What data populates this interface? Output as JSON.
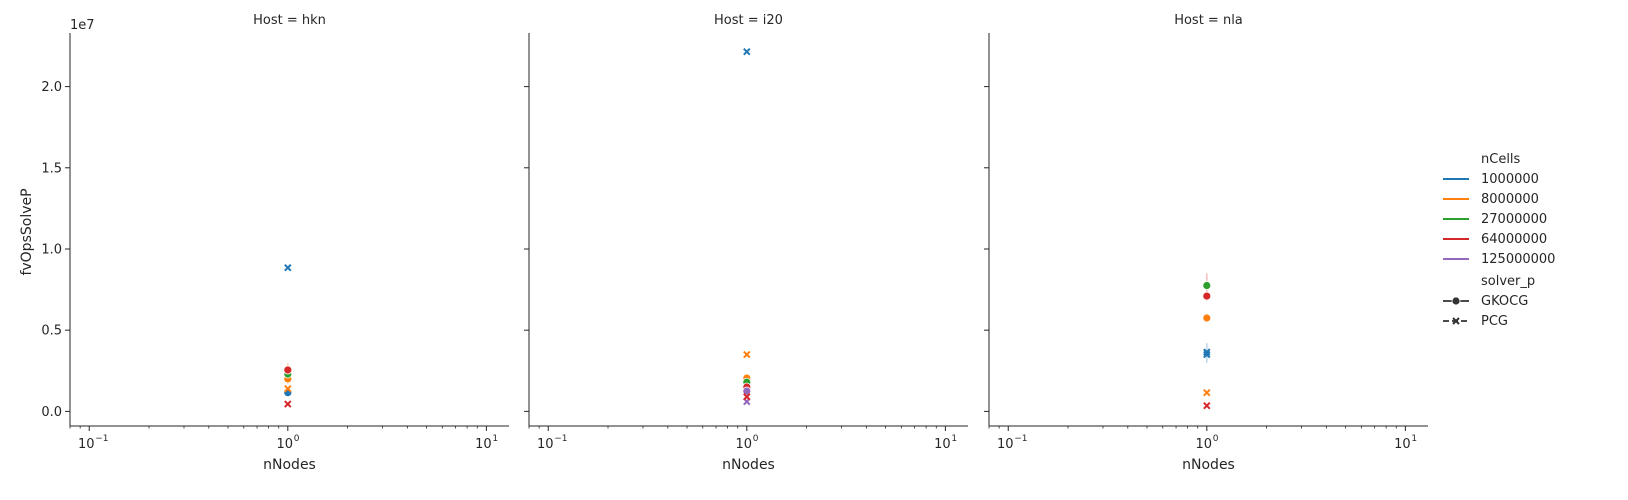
{
  "chart_data": {
    "type": "scatter",
    "layout": "facet-grid",
    "facet_titles": [
      "Host = hkn",
      "Host = i20",
      "Host = nla"
    ],
    "xlabel": "nNodes",
    "ylabel": "fvOpsSolveP",
    "y_offset_label": "1e7",
    "x_scale": "log",
    "xlim": [
      0.08,
      13
    ],
    "x_ticks": [
      0.1,
      1,
      10
    ],
    "x_tick_labels": [
      "10",
      "10",
      "10"
    ],
    "x_tick_exponents": [
      "−1",
      "0",
      "1"
    ],
    "ylim": [
      -0.09,
      2.33
    ],
    "y_ticks": [
      0.0,
      0.5,
      1.0,
      1.5,
      2.0
    ],
    "y_tick_labels": [
      "0.0",
      "0.5",
      "1.0",
      "1.5",
      "2.0"
    ],
    "grid": false,
    "legend_position": "right",
    "legend": {
      "hue_title": "nCells",
      "hue_entries": [
        {
          "label": "1000000",
          "color": "#1f77b4"
        },
        {
          "label": "8000000",
          "color": "#ff7f0e"
        },
        {
          "label": "27000000",
          "color": "#2ca02c"
        },
        {
          "label": "64000000",
          "color": "#d62728"
        },
        {
          "label": "125000000",
          "color": "#9467bd"
        }
      ],
      "style_title": "solver_p",
      "style_entries": [
        {
          "label": "GKOCG",
          "marker": "circle",
          "dash": "solid"
        },
        {
          "label": "PCG",
          "marker": "x",
          "dash": "dashed"
        }
      ]
    },
    "panels": [
      {
        "host": "hkn",
        "points": [
          {
            "x": 1,
            "y": 0.885,
            "nCells": "1000000",
            "solver_p": "PCG"
          },
          {
            "x": 1,
            "y": 0.115,
            "nCells": "1000000",
            "solver_p": "GKOCG"
          },
          {
            "x": 1,
            "y": 0.2,
            "nCells": "8000000",
            "solver_p": "GKOCG"
          },
          {
            "x": 1,
            "y": 0.14,
            "nCells": "8000000",
            "solver_p": "PCG"
          },
          {
            "x": 1,
            "y": 0.23,
            "nCells": "27000000",
            "solver_p": "GKOCG"
          },
          {
            "x": 1,
            "y": 0.255,
            "nCells": "64000000",
            "solver_p": "GKOCG"
          },
          {
            "x": 1,
            "y": 0.045,
            "nCells": "64000000",
            "solver_p": "PCG"
          }
        ],
        "error_bars": [
          {
            "x": 1,
            "low": 0.17,
            "high": 0.3,
            "nCells": "8000000"
          }
        ]
      },
      {
        "host": "i20",
        "points": [
          {
            "x": 1,
            "y": 2.215,
            "nCells": "1000000",
            "solver_p": "PCG"
          },
          {
            "x": 1,
            "y": 0.35,
            "nCells": "8000000",
            "solver_p": "PCG"
          },
          {
            "x": 1,
            "y": 0.205,
            "nCells": "8000000",
            "solver_p": "GKOCG"
          },
          {
            "x": 1,
            "y": 0.18,
            "nCells": "27000000",
            "solver_p": "GKOCG"
          },
          {
            "x": 1,
            "y": 0.15,
            "nCells": "64000000",
            "solver_p": "GKOCG"
          },
          {
            "x": 1,
            "y": 0.125,
            "nCells": "125000000",
            "solver_p": "GKOCG"
          },
          {
            "x": 1,
            "y": 0.06,
            "nCells": "125000000",
            "solver_p": "PCG"
          },
          {
            "x": 1,
            "y": 0.09,
            "nCells": "64000000",
            "solver_p": "PCG"
          }
        ],
        "error_bars": [
          {
            "x": 1,
            "low": 0.1,
            "high": 0.2,
            "nCells": "125000000"
          }
        ]
      },
      {
        "host": "nla",
        "points": [
          {
            "x": 1,
            "y": 0.775,
            "nCells": "27000000",
            "solver_p": "GKOCG"
          },
          {
            "x": 1,
            "y": 0.71,
            "nCells": "64000000",
            "solver_p": "GKOCG"
          },
          {
            "x": 1,
            "y": 0.575,
            "nCells": "8000000",
            "solver_p": "GKOCG"
          },
          {
            "x": 1,
            "y": 0.365,
            "nCells": "1000000",
            "solver_p": "PCG"
          },
          {
            "x": 1,
            "y": 0.35,
            "nCells": "1000000",
            "solver_p": "PCG"
          },
          {
            "x": 1,
            "y": 0.115,
            "nCells": "8000000",
            "solver_p": "PCG"
          },
          {
            "x": 1,
            "y": 0.035,
            "nCells": "64000000",
            "solver_p": "PCG"
          }
        ],
        "error_bars": [
          {
            "x": 1,
            "low": 0.68,
            "high": 0.85,
            "nCells": "64000000"
          },
          {
            "x": 1,
            "low": 0.3,
            "high": 0.42,
            "nCells": "1000000"
          }
        ]
      }
    ]
  }
}
